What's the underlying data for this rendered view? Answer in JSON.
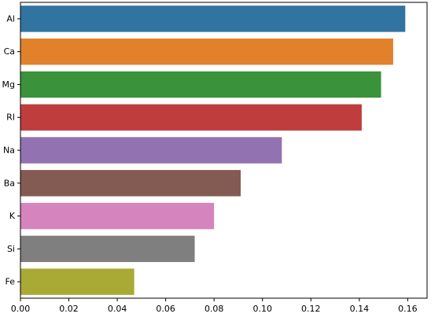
{
  "chart_data": {
    "type": "bar",
    "orientation": "horizontal",
    "title": "",
    "xlabel": "",
    "ylabel": "",
    "categories": [
      "Al",
      "Ca",
      "Mg",
      "RI",
      "Na",
      "Ba",
      "K",
      "Si",
      "Fe"
    ],
    "values": [
      0.159,
      0.154,
      0.149,
      0.141,
      0.108,
      0.091,
      0.08,
      0.072,
      0.047
    ],
    "colors": [
      "#3274a1",
      "#e1812c",
      "#3a923a",
      "#c03d3e",
      "#9372b2",
      "#845b53",
      "#d684bd",
      "#7f7f7f",
      "#a9aa35"
    ],
    "xlim": [
      0,
      0.168
    ],
    "xticks": [
      0.0,
      0.02,
      0.04,
      0.06,
      0.08,
      0.1,
      0.12,
      0.14,
      0.16
    ],
    "xtick_labels": [
      "0.00",
      "0.02",
      "0.04",
      "0.06",
      "0.08",
      "0.10",
      "0.12",
      "0.14",
      "0.16"
    ],
    "grid": false,
    "legend": "none"
  }
}
